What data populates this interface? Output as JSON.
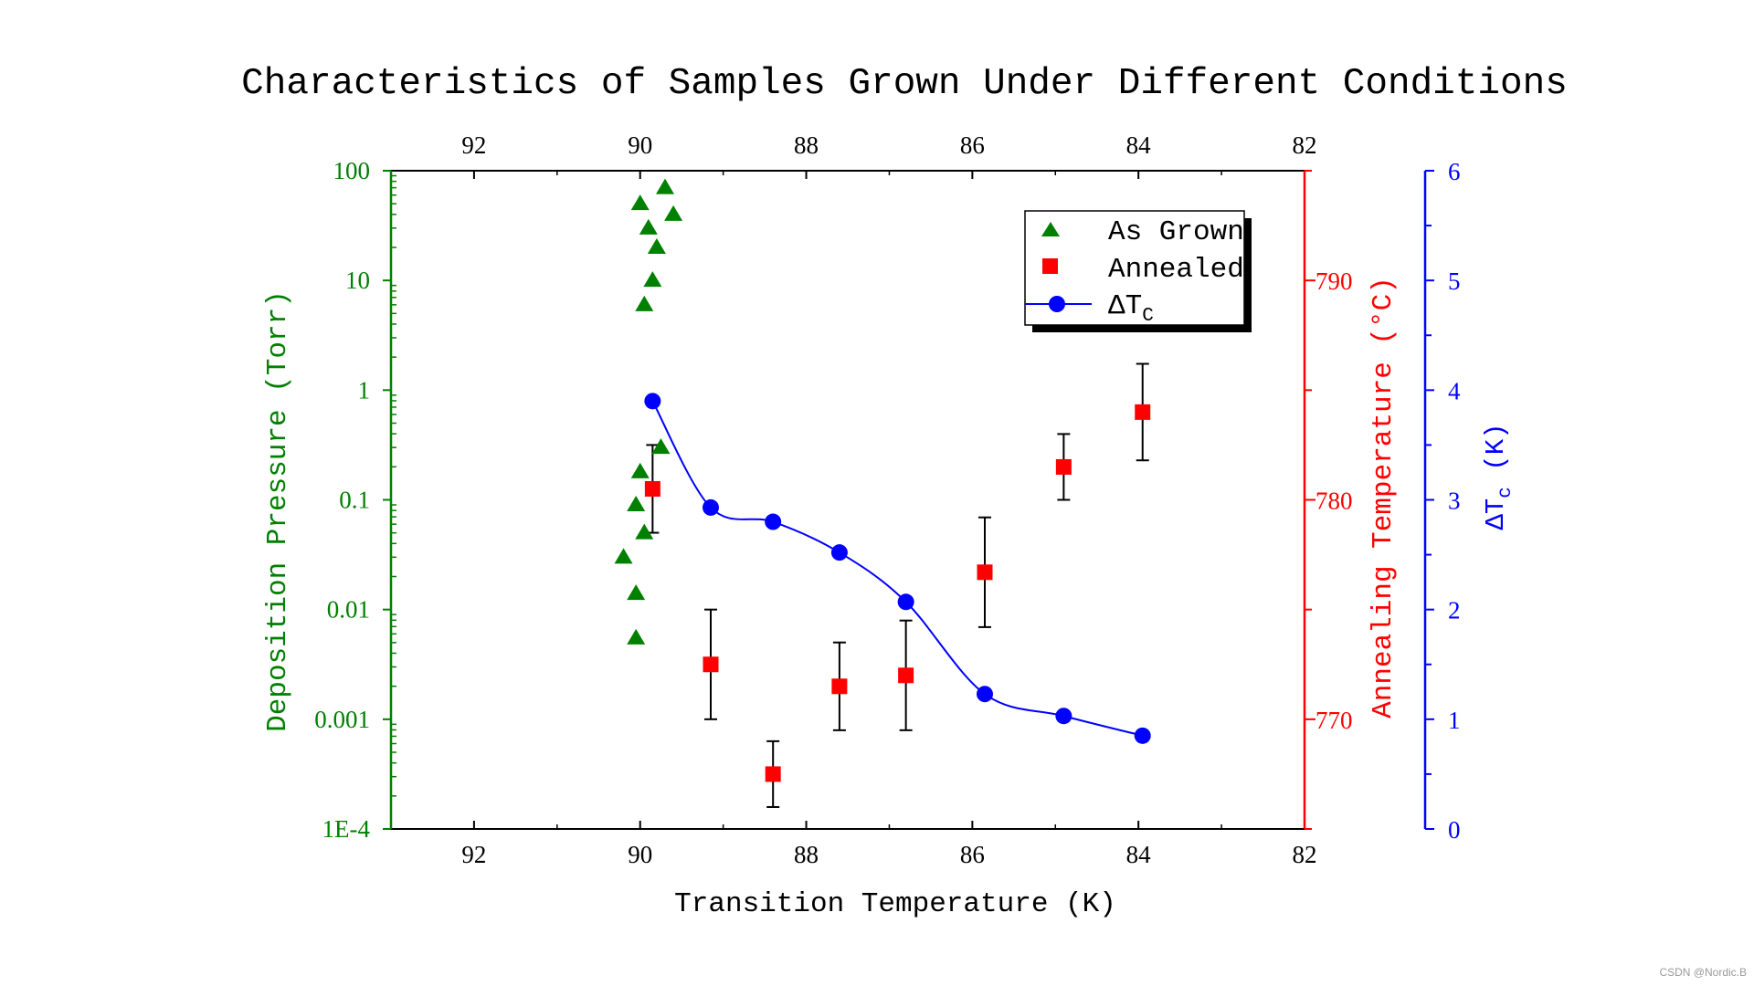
{
  "chart_data": {
    "type": "scatter",
    "title": "Characteristics of Samples Grown Under Different Conditions",
    "xlabel": "Transition Temperature (K)",
    "xlim": [
      93,
      82
    ],
    "xticks": [
      "92",
      "90",
      "88",
      "86",
      "84",
      "82"
    ],
    "left_axis": {
      "label": "Deposition Pressure (Torr)",
      "scale": "log",
      "ylim": [
        0.0001,
        100
      ],
      "ticks": [
        "1E-4",
        "0.001",
        "0.01",
        "0.1",
        "1",
        "10",
        "100"
      ],
      "color": "#008000"
    },
    "right_axis_1": {
      "label": "Annealing Temperature (°C)",
      "ylim": [
        765,
        795
      ],
      "ticks": [
        "770",
        "780",
        "790"
      ],
      "color": "#ff0000"
    },
    "right_axis_2": {
      "label_main": "ΔT",
      "label_sub": "c",
      "label_unit": "(K)",
      "ylim": [
        0,
        6
      ],
      "ticks": [
        "0",
        "1",
        "2",
        "3",
        "4",
        "5",
        "6"
      ],
      "color": "#0000ff"
    },
    "series": [
      {
        "name": "As Grown",
        "axis": "left",
        "marker": "triangle",
        "color": "#008000",
        "x": [
          89.7,
          89.6,
          90.0,
          89.9,
          89.8,
          89.85,
          89.95,
          89.75,
          90.0,
          90.05,
          90.2,
          90.05,
          90.05,
          89.95
        ],
        "y": [
          70,
          40,
          50,
          30,
          20,
          10,
          6,
          0.3,
          0.18,
          0.09,
          0.03,
          0.014,
          0.0055,
          0.05
        ]
      },
      {
        "name": "Annealed",
        "axis": "right_1",
        "marker": "square",
        "color": "#ff0000",
        "x": [
          89.85,
          89.15,
          88.4,
          87.6,
          86.8,
          85.85,
          84.9,
          83.95
        ],
        "y": [
          780.5,
          772.5,
          767.5,
          771.5,
          772,
          776.7,
          781.5,
          784
        ],
        "error_low": [
          2,
          2.5,
          1.5,
          2,
          2.5,
          2.5,
          1.5,
          2.2
        ],
        "error_high": [
          2,
          2.5,
          1.5,
          2,
          2.5,
          2.5,
          1.5,
          2.2
        ]
      },
      {
        "name": "ΔTC",
        "legend_main": "ΔT",
        "legend_sub": "C",
        "axis": "right_2",
        "marker": "circle",
        "line": "smooth",
        "color": "#0000ff",
        "x": [
          89.85,
          89.15,
          88.4,
          87.6,
          86.8,
          85.85,
          84.9,
          83.95
        ],
        "y": [
          3.9,
          2.93,
          2.8,
          2.52,
          2.07,
          1.23,
          1.03,
          0.85
        ]
      }
    ],
    "legend": {
      "placement": "top-right",
      "entries": [
        "As Grown",
        "Annealed",
        "ΔTC"
      ]
    }
  },
  "watermark": "CSDN @Nordic.B"
}
